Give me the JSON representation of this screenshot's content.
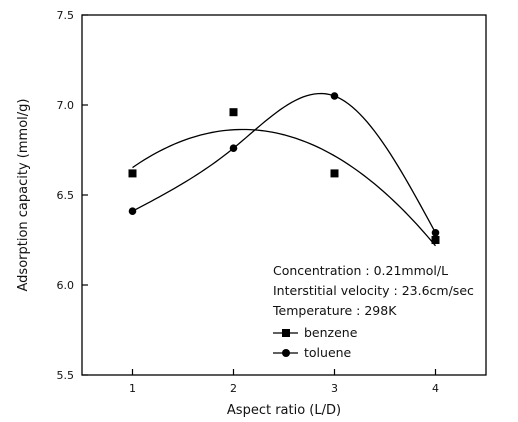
{
  "chart_data": {
    "type": "scatter",
    "xlabel": "Aspect ratio (L/D)",
    "ylabel": "Adsorption capacity (mmol/g)",
    "xlim": [
      0.5,
      4.5
    ],
    "ylim": [
      5.5,
      7.5
    ],
    "x_ticks": [
      "1",
      "2",
      "3",
      "4"
    ],
    "y_ticks": [
      "5.5",
      "6.0",
      "6.5",
      "7.0",
      "7.5"
    ],
    "grid": false,
    "legend_position": "lower-right",
    "series": [
      {
        "name": "benzene",
        "marker": "square",
        "color": "#000000",
        "x": [
          1,
          2,
          3,
          4
        ],
        "y": [
          6.62,
          6.96,
          6.62,
          6.25
        ]
      },
      {
        "name": "toluene",
        "marker": "circle",
        "color": "#000000",
        "x": [
          1,
          2,
          3,
          4
        ],
        "y": [
          6.41,
          6.76,
          7.05,
          6.29
        ]
      }
    ],
    "annotations": [
      "Concentration : 0.21mmol/L",
      "Interstitial velocity : 23.6cm/sec",
      "Temperature : 298K"
    ]
  }
}
